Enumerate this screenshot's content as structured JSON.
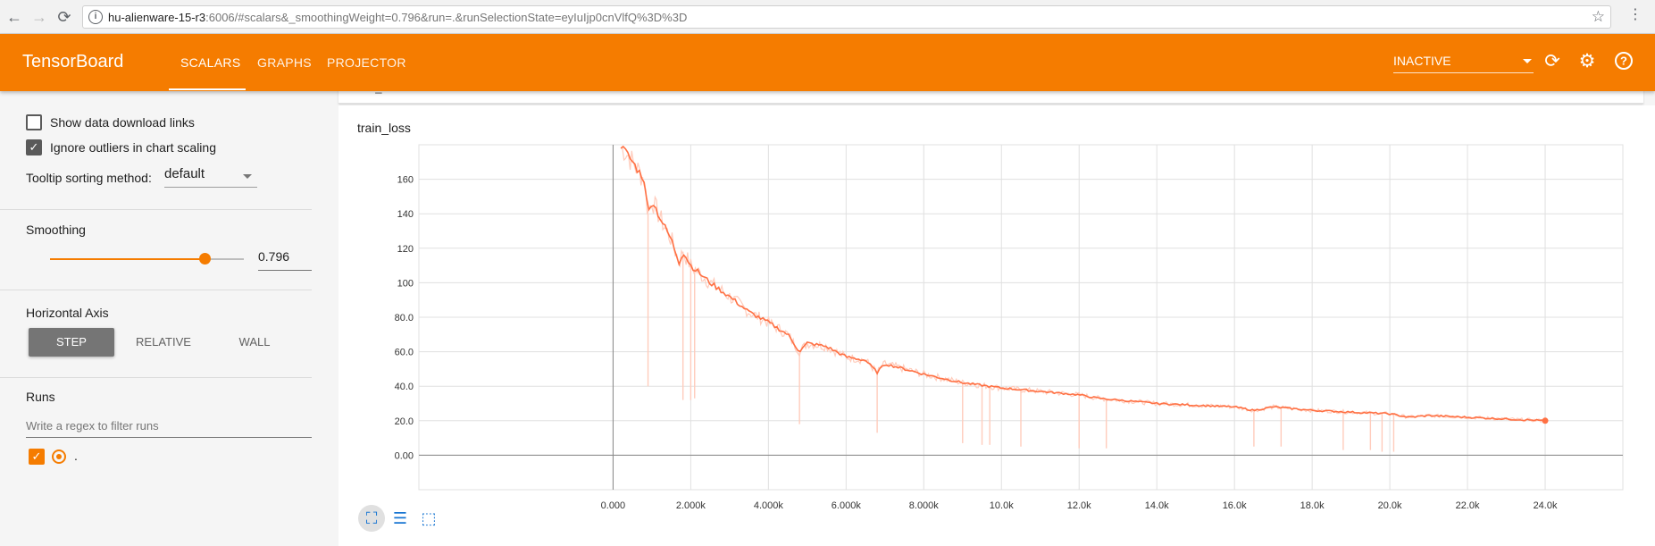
{
  "browser": {
    "url_host": "hu-alienware-15-r3",
    "url_rest": ":6006/#scalars&_smoothingWeight=0.796&run=.&runSelectionState=eyIuIjp0cnVlfQ%3D%3D"
  },
  "header": {
    "title": "TensorBoard",
    "tabs": [
      "SCALARS",
      "GRAPHS",
      "PROJECTOR"
    ],
    "active_tab": "SCALARS",
    "inactive_label": "INACTIVE",
    "accent": "#f57c00"
  },
  "sidebar": {
    "show_download_label": "Show data download links",
    "show_download_checked": false,
    "ignore_outliers_label": "Ignore outliers in chart scaling",
    "ignore_outliers_checked": true,
    "tooltip_label": "Tooltip sorting method:",
    "tooltip_value": "default",
    "smoothing_label": "Smoothing",
    "smoothing_value": "0.796",
    "smoothing_fraction": 0.796,
    "horizontal_axis_label": "Horizontal Axis",
    "axis_options": [
      "STEP",
      "RELATIVE",
      "WALL"
    ],
    "axis_selected": "STEP",
    "runs_label": "Runs",
    "runs_filter_placeholder": "Write a regex to filter runs",
    "runs": [
      {
        "name": ".",
        "checked": true,
        "color": "#f57c00"
      }
    ]
  },
  "card": {
    "collapsed_title": "train_loss",
    "chart_title": "train_loss"
  },
  "chart_data": {
    "type": "line",
    "title": "train_loss",
    "xlabel": "",
    "ylabel": "",
    "x_ticks": [
      "0.000",
      "2.000k",
      "4.000k",
      "6.000k",
      "8.000k",
      "10.0k",
      "12.0k",
      "14.0k",
      "16.0k",
      "18.0k",
      "20.0k",
      "22.0k",
      "24.0k"
    ],
    "y_ticks": [
      "0.00",
      "20.0",
      "40.0",
      "60.0",
      "80.0",
      "100",
      "120",
      "140",
      "160"
    ],
    "xlim": [
      -5000,
      26000
    ],
    "ylim": [
      -20,
      180
    ],
    "grid": true,
    "series": [
      {
        "smoothed": true,
        "color": "#ff7043",
        "x": [
          200,
          500,
          800,
          900,
          1000,
          1200,
          1500,
          1700,
          1800,
          2000,
          2200,
          2500,
          3000,
          3500,
          4000,
          4500,
          4800,
          5000,
          5500,
          6000,
          6500,
          6800,
          7000,
          8000,
          9000,
          10000,
          11000,
          12000,
          12500,
          13000,
          14000,
          15000,
          16000,
          16500,
          17000,
          18000,
          19000,
          20000,
          20500,
          21000,
          22000,
          23000,
          24000
        ],
        "y": [
          180,
          170,
          160,
          140,
          148,
          138,
          125,
          112,
          118,
          110,
          106,
          100,
          92,
          83,
          77,
          70,
          60,
          65,
          63,
          57,
          55,
          48,
          53,
          47,
          42,
          39,
          37,
          35,
          33,
          32,
          30,
          29,
          28,
          26,
          28,
          26,
          25,
          24,
          22,
          23,
          22,
          21,
          20
        ]
      },
      {
        "smoothed": false,
        "color": "#ffccbc",
        "spikes_x": [
          900,
          1800,
          2000,
          2100,
          4800,
          6800,
          9000,
          9500,
          9700,
          10500,
          12000,
          12700,
          16500,
          17200,
          18800,
          19500,
          19800,
          20100
        ],
        "spikes_y": [
          40,
          32,
          32,
          33,
          18,
          13,
          7,
          6,
          6,
          5,
          4,
          4,
          5,
          5,
          3,
          3,
          2,
          2
        ]
      }
    ]
  }
}
